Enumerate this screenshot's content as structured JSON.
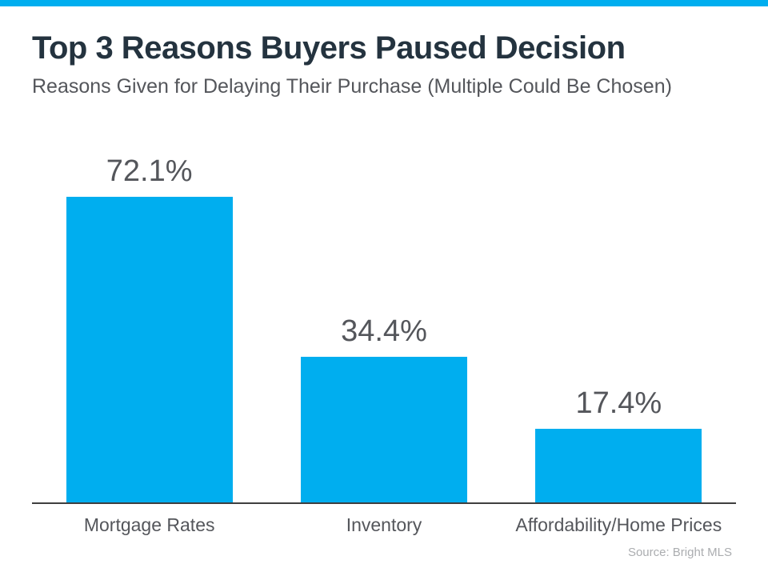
{
  "page": {
    "title": "Top 3 Reasons Buyers Paused Decision",
    "subtitle": "Reasons Given for Delaying Their Purchase (Multiple Could Be Chosen)",
    "source": "Source: Bright MLS"
  },
  "colors": {
    "accent": "#00AEEF",
    "top_strip": "#00AEEF",
    "title_text": "#24333F",
    "label_text": "#54565B",
    "axis_line": "#3F3F3F",
    "source_text": "#ABADB0"
  },
  "chart_data": {
    "type": "bar",
    "title": "Top 3 Reasons Buyers Paused Decision",
    "subtitle": "Reasons Given for Delaying Their Purchase (Multiple Could Be Chosen)",
    "categories": [
      "Mortgage Rates",
      "Inventory",
      "Affordability/Home Prices"
    ],
    "values": [
      72.1,
      34.4,
      17.4
    ],
    "value_labels": [
      "72.1%",
      "34.4%",
      "17.4%"
    ],
    "ylim": [
      0,
      80
    ],
    "grid": false,
    "legend": false,
    "bar_color": "#00AEEF",
    "source": "Source: Bright MLS"
  }
}
